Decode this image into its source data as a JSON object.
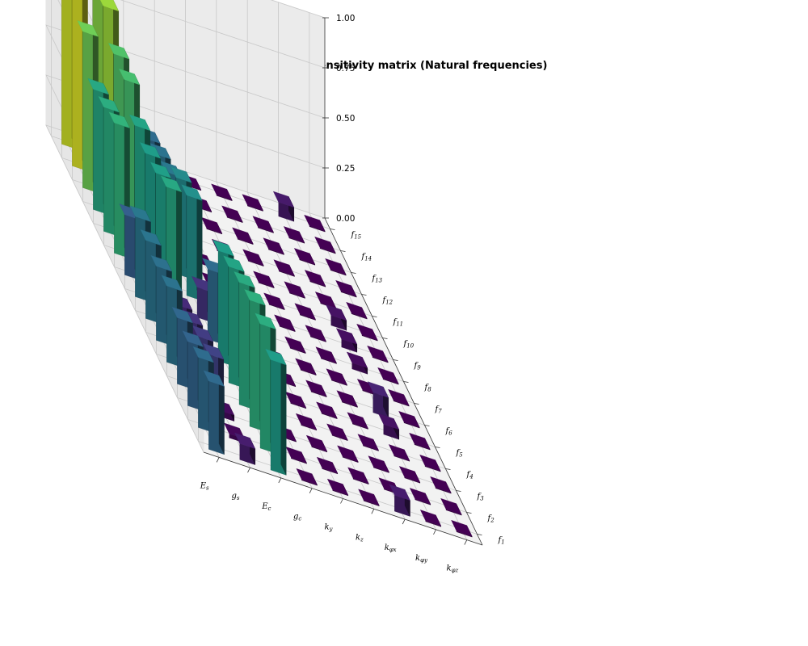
{
  "chart_data": {
    "type": "bar3d",
    "title": "Final sensitivity matrix (Natural frequencies)",
    "xlabel": "",
    "ylabel": "",
    "zlabel": "",
    "zlim": [
      0,
      1
    ],
    "zticks": [
      "0.00",
      "0.25",
      "0.50",
      "0.75",
      "1.00"
    ],
    "colormap": "viridis",
    "grid": true,
    "parameters": [
      {
        "base": "E",
        "sub": "s"
      },
      {
        "base": "g",
        "sub": "s"
      },
      {
        "base": "E",
        "sub": "c"
      },
      {
        "base": "g",
        "sub": "c"
      },
      {
        "base": "k",
        "sub": "y"
      },
      {
        "base": "k",
        "sub": "z"
      },
      {
        "base": "k",
        "sub": "φx"
      },
      {
        "base": "k",
        "sub": "φy"
      },
      {
        "base": "k",
        "sub": "φz"
      }
    ],
    "frequencies": [
      {
        "base": "f",
        "sub": "1"
      },
      {
        "base": "f",
        "sub": "2"
      },
      {
        "base": "f",
        "sub": "3"
      },
      {
        "base": "f",
        "sub": "4"
      },
      {
        "base": "f",
        "sub": "5"
      },
      {
        "base": "f",
        "sub": "6"
      },
      {
        "base": "f",
        "sub": "7"
      },
      {
        "base": "f",
        "sub": "8"
      },
      {
        "base": "f",
        "sub": "9"
      },
      {
        "base": "f",
        "sub": "10"
      },
      {
        "base": "f",
        "sub": "11"
      },
      {
        "base": "f",
        "sub": "12"
      },
      {
        "base": "f",
        "sub": "13"
      },
      {
        "base": "f",
        "sub": "14"
      },
      {
        "base": "f",
        "sub": "15"
      }
    ],
    "values": [
      [
        0.34,
        0.35,
        0.32,
        0.33,
        0.38,
        0.37,
        0.39,
        0.4,
        0.3,
        0.65,
        0.62,
        0.6,
        0.78,
        0.95,
        0.93
      ],
      [
        0.08,
        0.02,
        0.03,
        0.2,
        0.18,
        0.15,
        0.12,
        0.6,
        0.56,
        0.55,
        0.58,
        0.7,
        0.72,
        0.85,
        0.82
      ],
      [
        0.55,
        0.62,
        0.63,
        0.61,
        0.58,
        0.55,
        0.35,
        0.15,
        0.5,
        0.48,
        0.4,
        0.38,
        0.35,
        0.3,
        0.25
      ],
      [
        0.0,
        0.0,
        0.0,
        0.0,
        0.0,
        0.0,
        0.0,
        0.0,
        0.0,
        0.0,
        0.0,
        0.0,
        0.0,
        0.0,
        0.0
      ],
      [
        0.0,
        0.0,
        0.0,
        0.0,
        0.0,
        0.0,
        0.0,
        0.0,
        0.0,
        0.0,
        0.0,
        0.0,
        0.0,
        0.0,
        0.0
      ],
      [
        0.0,
        0.0,
        0.0,
        0.0,
        0.0,
        0.0,
        0.0,
        0.0,
        0.0,
        0.0,
        0.0,
        0.0,
        0.0,
        0.0,
        0.0
      ],
      [
        0.08,
        0.0,
        0.0,
        0.0,
        0.0,
        0.0,
        0.0,
        0.0,
        0.0,
        0.0,
        0.0,
        0.0,
        0.0,
        0.0,
        0.0
      ],
      [
        0.0,
        0.0,
        0.0,
        0.0,
        0.05,
        0.1,
        0.0,
        0.03,
        0.04,
        0.05,
        0.0,
        0.0,
        0.0,
        0.0,
        0.07
      ],
      [
        0.0,
        0.0,
        0.0,
        0.0,
        0.0,
        0.0,
        0.0,
        0.0,
        0.0,
        0.0,
        0.0,
        0.0,
        0.0,
        0.0,
        0.0
      ]
    ]
  }
}
